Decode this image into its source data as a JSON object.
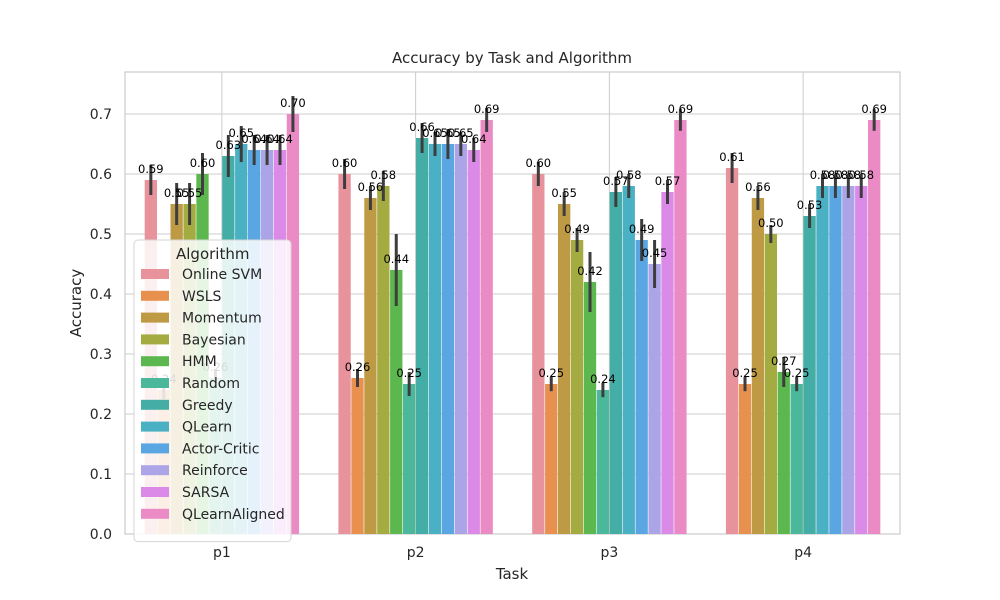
{
  "chart_data": {
    "type": "bar",
    "title": "Accuracy by Task and Algorithm",
    "xlabel": "Task",
    "ylabel": "Accuracy",
    "ylim": [
      0,
      0.77
    ],
    "yticks": [
      "0.0",
      "0.1",
      "0.2",
      "0.3",
      "0.4",
      "0.5",
      "0.6",
      "0.7"
    ],
    "categories": [
      "p1",
      "p2",
      "p3",
      "p4"
    ],
    "grid": true,
    "legend": {
      "title": "Algorithm",
      "placement": "center-left"
    },
    "series": [
      {
        "name": "Online SVM",
        "color": "#e8929c",
        "values": [
          0.59,
          0.6,
          0.6,
          0.61
        ],
        "labels": [
          "0.59",
          "0.60",
          "0.60",
          "0.61"
        ],
        "err": [
          0.025,
          0.025,
          0.02,
          0.025
        ]
      },
      {
        "name": "WSLS",
        "color": "#e8914f",
        "values": [
          0.24,
          0.26,
          0.25,
          0.25
        ],
        "labels": [
          "0.24",
          "0.26",
          "0.25",
          "0.25"
        ],
        "err": [
          0.015,
          0.015,
          0.012,
          0.012
        ]
      },
      {
        "name": "Momentum",
        "color": "#bf9a45",
        "values": [
          0.55,
          0.56,
          0.55,
          0.56
        ],
        "labels": [
          "0.55",
          "0.56",
          "0.55",
          "0.56"
        ],
        "err": [
          0.035,
          0.02,
          0.02,
          0.02
        ]
      },
      {
        "name": "Bayesian",
        "color": "#a4ab41",
        "values": [
          0.55,
          0.58,
          0.49,
          0.5
        ],
        "labels": [
          "0.55",
          "0.58",
          "0.49",
          "0.50"
        ],
        "err": [
          0.035,
          0.025,
          0.02,
          0.015
        ]
      },
      {
        "name": "HMM",
        "color": "#5cb84e",
        "values": [
          0.6,
          0.44,
          0.42,
          0.27
        ],
        "labels": [
          "0.60",
          "0.44",
          "0.42",
          "0.27"
        ],
        "err": [
          0.035,
          0.06,
          0.05,
          0.025
        ]
      },
      {
        "name": "Random",
        "color": "#4cb89b",
        "values": [
          0.26,
          0.25,
          0.24,
          0.25
        ],
        "labels": [
          "0.26",
          "0.25",
          "0.24",
          "0.25"
        ],
        "err": [
          0.015,
          0.02,
          0.012,
          0.012
        ]
      },
      {
        "name": "Greedy",
        "color": "#44ada5",
        "values": [
          0.63,
          0.66,
          0.57,
          0.53
        ],
        "labels": [
          "0.63",
          "0.66",
          "0.57",
          "0.53"
        ],
        "err": [
          0.035,
          0.025,
          0.025,
          0.02
        ]
      },
      {
        "name": "QLearn",
        "color": "#4ab0c4",
        "values": [
          0.65,
          0.65,
          0.58,
          0.58
        ],
        "labels": [
          "0.65",
          "0.65",
          "0.58",
          "0.58"
        ],
        "err": [
          0.03,
          0.02,
          0.02,
          0.02
        ]
      },
      {
        "name": "Actor-Critic",
        "color": "#5aa6e2",
        "values": [
          0.64,
          0.65,
          0.49,
          0.58
        ],
        "labels": [
          "0.64",
          "0.65",
          "0.49",
          "0.58"
        ],
        "err": [
          0.025,
          0.025,
          0.035,
          0.02
        ]
      },
      {
        "name": "Reinforce",
        "color": "#aba5e8",
        "values": [
          0.64,
          0.65,
          0.45,
          0.58
        ],
        "labels": [
          "0.64",
          "0.65",
          "0.45",
          "0.58"
        ],
        "err": [
          0.025,
          0.02,
          0.04,
          0.02
        ]
      },
      {
        "name": "SARSA",
        "color": "#db8ae8",
        "values": [
          0.64,
          0.64,
          0.57,
          0.58
        ],
        "labels": [
          "0.64",
          "0.64",
          "0.57",
          "0.58"
        ],
        "err": [
          0.025,
          0.02,
          0.02,
          0.02
        ]
      },
      {
        "name": "QLearnAligned",
        "color": "#eb8bc6",
        "values": [
          0.7,
          0.69,
          0.69,
          0.69
        ],
        "labels": [
          "0.70",
          "0.69",
          "0.69",
          "0.69"
        ],
        "err": [
          0.03,
          0.02,
          0.018,
          0.018
        ]
      }
    ]
  }
}
